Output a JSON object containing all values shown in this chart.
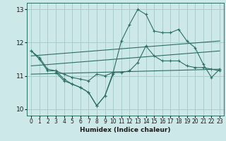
{
  "xlabel": "Humidex (Indice chaleur)",
  "bg_color": "#cce8e8",
  "grid_color": "#aacccc",
  "line_color": "#2d6e62",
  "x_all": [
    0,
    1,
    2,
    3,
    4,
    5,
    6,
    7,
    8,
    9,
    10,
    11,
    12,
    13,
    14,
    15,
    16,
    17,
    18,
    19,
    20,
    21,
    22,
    23
  ],
  "series1": [
    11.75,
    11.55,
    11.2,
    11.15,
    10.9,
    10.75,
    10.65,
    10.5,
    10.1,
    10.4,
    11.1,
    12.05,
    12.55,
    13.0,
    12.85,
    12.35,
    12.3,
    12.3,
    12.4,
    12.05,
    11.85,
    11.35,
    10.95,
    11.2
  ],
  "series2_x": [
    0,
    1,
    2,
    3,
    4,
    5,
    6,
    7,
    8,
    9,
    10,
    11,
    12,
    13,
    14,
    15,
    16,
    17,
    18,
    19,
    20,
    21,
    22,
    23
  ],
  "series2": [
    11.75,
    11.5,
    11.15,
    11.15,
    11.05,
    10.95,
    10.9,
    10.85,
    11.05,
    11.0,
    11.1,
    11.1,
    11.15,
    11.4,
    11.9,
    11.6,
    11.45,
    11.45,
    11.45,
    11.3,
    11.25,
    11.25,
    11.2,
    11.15
  ],
  "series3_lower_x": [
    3,
    4,
    5,
    6,
    7,
    8,
    9,
    10
  ],
  "series3_lower": [
    11.1,
    10.85,
    10.75,
    10.65,
    10.5,
    10.1,
    10.4,
    11.05
  ],
  "trend1_x": [
    0,
    23
  ],
  "trend1_y": [
    11.6,
    12.05
  ],
  "trend2_x": [
    0,
    23
  ],
  "trend2_y": [
    11.3,
    11.75
  ],
  "trend3_x": [
    0,
    23
  ],
  "trend3_y": [
    11.05,
    11.2
  ],
  "ylim": [
    9.8,
    13.2
  ],
  "xlim": [
    -0.5,
    23.5
  ],
  "yticks": [
    10,
    11,
    12,
    13
  ],
  "xticks": [
    0,
    1,
    2,
    3,
    4,
    5,
    6,
    7,
    8,
    9,
    10,
    11,
    12,
    13,
    14,
    15,
    16,
    17,
    18,
    19,
    20,
    21,
    22,
    23
  ]
}
